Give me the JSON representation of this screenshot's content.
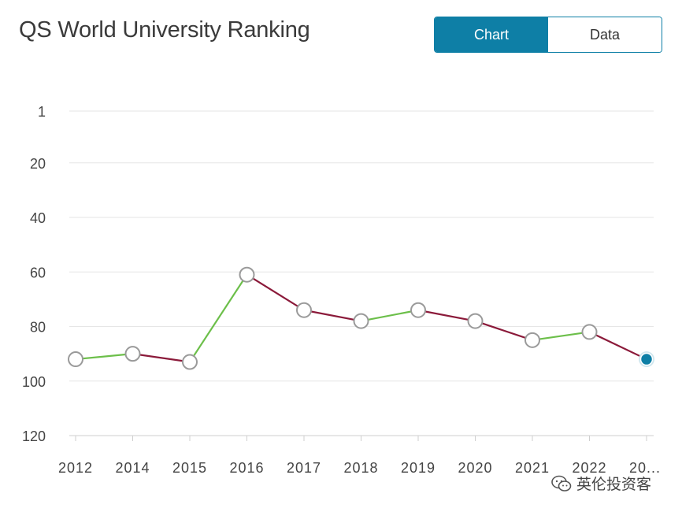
{
  "title": "QS World University Ranking",
  "toggle": {
    "chart_label": "Chart",
    "data_label": "Data",
    "active": "chart"
  },
  "watermark": {
    "text": "英伦投资客"
  },
  "colors": {
    "accent": "#0e7fa6",
    "up": "#6cbf4a",
    "down": "#8b1a3a",
    "grid": "#e6e6e6"
  },
  "chart_data": {
    "type": "line",
    "categories": [
      "2012",
      "2014",
      "2015",
      "2016",
      "2017",
      "2018",
      "2019",
      "2020",
      "2021",
      "2022",
      "20..."
    ],
    "values": [
      92,
      90,
      93,
      61,
      74,
      78,
      74,
      78,
      85,
      82,
      92
    ],
    "y_ticks": [
      1,
      20,
      40,
      60,
      80,
      100,
      120
    ],
    "ylim": [
      1,
      120
    ],
    "y_inverted": true,
    "grid": true,
    "segment_colors": "green when rank improves, red when rank worsens",
    "title": "QS World University Ranking"
  }
}
